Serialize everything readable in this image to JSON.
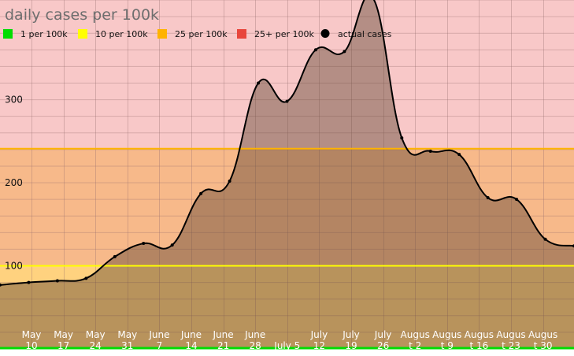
{
  "chart_data": {
    "type": "area",
    "title": "daily cases per 100k",
    "xlabel": "",
    "ylabel": "",
    "ylim": [
      0,
      420
    ],
    "y_ticks": [
      100,
      200,
      300
    ],
    "grid": true,
    "legend_position": "top-left",
    "x_tick_labels": [
      [
        "May",
        "10"
      ],
      [
        "May",
        "17"
      ],
      [
        "May",
        "24"
      ],
      [
        "May",
        "31"
      ],
      [
        "June",
        "7"
      ],
      [
        "June",
        "14"
      ],
      [
        "June",
        "21"
      ],
      [
        "June",
        "28"
      ],
      [
        "",
        "July 5"
      ],
      [
        "July",
        "12"
      ],
      [
        "July",
        "19"
      ],
      [
        "July",
        "26"
      ],
      [
        "Augus",
        "t 2"
      ],
      [
        "Augus",
        "t 9"
      ],
      [
        "Augus",
        "t 16"
      ],
      [
        "Augus",
        "t 23"
      ],
      [
        "Augus",
        "t 30"
      ]
    ],
    "legend": [
      {
        "label": "1 per 100k",
        "color": "#00dd00"
      },
      {
        "label": "10 per 100k",
        "color": "#ffff00"
      },
      {
        "label": "25 per 100k",
        "color": "#ffb300"
      },
      {
        "label": "25+ per 100k",
        "color": "#e8463c"
      },
      {
        "label": "actual cases",
        "color": "#000000"
      }
    ],
    "thresholds": [
      {
        "value": 0,
        "color": "#00dd00"
      },
      {
        "value": 100,
        "color": "#ffff00"
      },
      {
        "value": 241,
        "color": "#ffb300"
      }
    ],
    "bands": [
      {
        "from": 0,
        "to": 100,
        "color": "#ffd27f"
      },
      {
        "from": 100,
        "to": 241,
        "color": "#f7b98a"
      },
      {
        "from": 241,
        "to": 420,
        "color": "#f8c8c8"
      }
    ],
    "area_fill_opacity": 0.45,
    "series": [
      {
        "values": [
          77,
          80,
          82,
          85,
          111,
          127,
          125,
          187,
          202,
          320,
          298,
          360,
          358,
          422,
          254,
          238,
          234,
          182,
          180,
          132,
          124
        ]
      }
    ]
  }
}
